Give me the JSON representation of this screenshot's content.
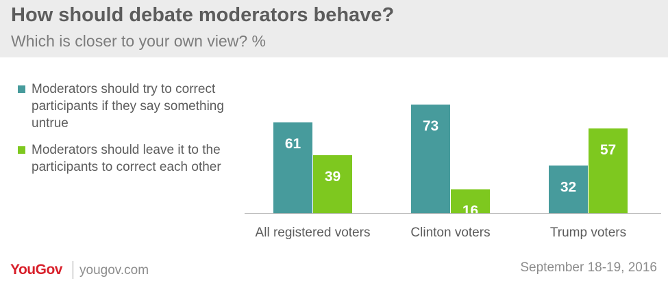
{
  "header": {
    "title": "How should debate moderators behave?",
    "subtitle": "Which is closer to your own view? %"
  },
  "footer": {
    "logo": "YouGov",
    "site": "yougov.com",
    "date": "September 18-19, 2016"
  },
  "colors": {
    "series1": "#479b9c",
    "series2": "#7ec81f",
    "header_bg": "#ececec",
    "brand": "#d81f2a"
  },
  "chart_data": {
    "type": "bar",
    "categories": [
      "All registered voters",
      "Clinton voters",
      "Trump voters"
    ],
    "series": [
      {
        "name": "Moderators should try to correct participants if they say something untrue",
        "values": [
          61,
          73,
          32
        ],
        "color": "#479b9c"
      },
      {
        "name": "Moderators should leave it to the participants to correct each other",
        "values": [
          39,
          16,
          57
        ],
        "color": "#7ec81f"
      }
    ],
    "ylim": [
      0,
      73
    ],
    "legend_position": "left",
    "grid": false
  }
}
